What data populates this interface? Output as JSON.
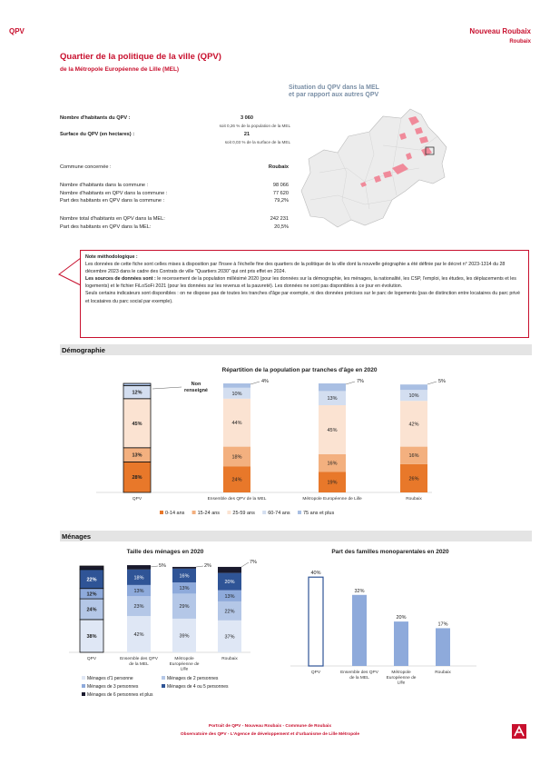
{
  "header": {
    "left_label": "QPV",
    "right_label": "Nouveau Roubaix",
    "right_sub": "Roubaix"
  },
  "title": "Quartier de la politique de la ville (QPV)",
  "subtitle": "de la Métropole Européenne de Lille (MEL)",
  "stats": {
    "hab_label": "Nombre d'habitants du QPV :",
    "hab_value": "3 060",
    "hab_note": "soit 0,26 % de la population de la MEL",
    "surf_label": "Surface du QPV (en hectares) :",
    "surf_value": "21",
    "surf_note": "soit 0,03 % de la surface de la MEL",
    "commune_label": "Commune concernée :",
    "commune_value": "Roubaix",
    "rows": [
      {
        "label": "Nombre d'habitants dans la commune :",
        "value": "98 066"
      },
      {
        "label": "Nombre d'habitants en QPV dans la commune :",
        "value": "77 620"
      },
      {
        "label": "Part des habitants en QPV dans la commune :",
        "value": "79,2%"
      }
    ],
    "rows2": [
      {
        "label": "Nombre total d'habitants en QPV dans la MEL:",
        "value": "242 231"
      },
      {
        "label": "Part des habitants en QPV dans la MEL:",
        "value": "20,5%"
      }
    ]
  },
  "map": {
    "title_line1": "Situation du QPV dans la MEL",
    "title_line2": "et par rapport aux autres QPV"
  },
  "note": {
    "heading": "Note méthodologique :",
    "p1": "Les données de cette fiche sont celles mises à disposition par l'Insee à l'échelle fine des quartiers de la politique de la ville dont la nouvelle géographie a été définie par le décret n° 2023-1314 du 28 décembre 2023 dans le cadre des Contrats de ville \"Quartiers 2030\" qui ont pris effet en 2024.",
    "p2_bold": "Les sources de données sont :",
    "p2": " le recensement de la population millésimé 2020 (pour les données sur la démographie, les ménages, la nationalité, les CSP, l'emploi, les études, les déplacements et les logements) et le fichier FiLoSoFi 2021 (pour les données sur les revenus et la pauvreté). Les données ne sont pas disponibles à ce jour en évolution.",
    "p3": "Seuls certains indicateurs sont disponibles : on ne dispose pas de toutes les tranches d'âge par exemple, ni des données précises sur le parc de logements (pas de distinction entre locataires du parc privé et locataires du parc social par exemple)."
  },
  "sections": {
    "demo": "Démographie",
    "menages": "Ménages"
  },
  "chart_data": [
    {
      "type": "bar",
      "stacked": true,
      "title": "Répartition de la population par tranches d'âge en 2020",
      "categories": [
        "QPV",
        "Ensemble des QPV de la MEL",
        "Métropole Européenne de Lille",
        "Roubaix"
      ],
      "series": [
        {
          "name": "0-14 ans",
          "color": "#e8782a",
          "values": [
            28,
            24,
            19,
            26
          ]
        },
        {
          "name": "15-24 ans",
          "color": "#f3b07f",
          "values": [
            13,
            18,
            16,
            16
          ]
        },
        {
          "name": "25-59 ans",
          "color": "#fbe3d2",
          "values": [
            45,
            44,
            45,
            42
          ]
        },
        {
          "name": "60-74 ans",
          "color": "#d3def0",
          "values": [
            12,
            10,
            13,
            10
          ]
        },
        {
          "name": "75 ans et plus",
          "color": "#a9bfe3",
          "values": [
            2,
            4,
            7,
            5
          ]
        }
      ],
      "labels": [
        [
          "28%",
          "13%",
          "45%",
          "12%",
          ""
        ],
        [
          "24%",
          "18%",
          "44%",
          "10%",
          "4%"
        ],
        [
          "19%",
          "16%",
          "45%",
          "13%",
          "7%"
        ],
        [
          "26%",
          "16%",
          "42%",
          "10%",
          "5%"
        ]
      ],
      "annotation": "Non renseigné",
      "ylim": [
        0,
        100
      ]
    },
    {
      "type": "bar",
      "stacked": true,
      "title": "Taille des ménages en 2020",
      "categories": [
        "QPV",
        "Ensemble des QPV de la MEL",
        "Métropole Européenne de Lille",
        "Roubaix"
      ],
      "series": [
        {
          "name": "Ménages d'1 personne",
          "color": "#dfe7f5",
          "values": [
            38,
            42,
            39,
            37
          ]
        },
        {
          "name": "Ménages de 2 personnes",
          "color": "#b4c7e7",
          "values": [
            24,
            23,
            29,
            22
          ]
        },
        {
          "name": "Ménages de 3 personnes",
          "color": "#8eaadb",
          "values": [
            12,
            13,
            13,
            13
          ]
        },
        {
          "name": "Ménages de 4 ou 5 personnes",
          "color": "#2f5496",
          "values": [
            22,
            18,
            16,
            20
          ]
        },
        {
          "name": "Ménages de 6 personnes et plus",
          "color": "#1a1a2e",
          "values": [
            4,
            5,
            2,
            7
          ]
        }
      ],
      "labels": [
        [
          "38%",
          "24%",
          "12%",
          "22%",
          ""
        ],
        [
          "42%",
          "23%",
          "13%",
          "18%",
          "5%"
        ],
        [
          "39%",
          "29%",
          "13%",
          "16%",
          "2%"
        ],
        [
          "37%",
          "22%",
          "13%",
          "20%",
          "7%"
        ]
      ],
      "ylim": [
        0,
        100
      ]
    },
    {
      "type": "bar",
      "title": "Part des familles monoparentales en 2020",
      "categories": [
        "QPV",
        "Ensemble des QPV de la MEL",
        "Métropole Européenne de Lille",
        "Roubaix"
      ],
      "values": [
        40,
        32,
        20,
        17
      ],
      "labels": [
        "40%",
        "32%",
        "20%",
        "17%"
      ],
      "colors": [
        "#2f5496",
        "#8eaadb",
        "#8eaadb",
        "#8eaadb"
      ],
      "ylim": [
        0,
        45
      ]
    }
  ],
  "footer": {
    "line1": "Portrait de QPV - Nouveau Roubaix - Commune de Roubaix",
    "line2": "Observatoire des QPV - L'Agence de développement et d'urbanisme de Lille Métropole"
  }
}
